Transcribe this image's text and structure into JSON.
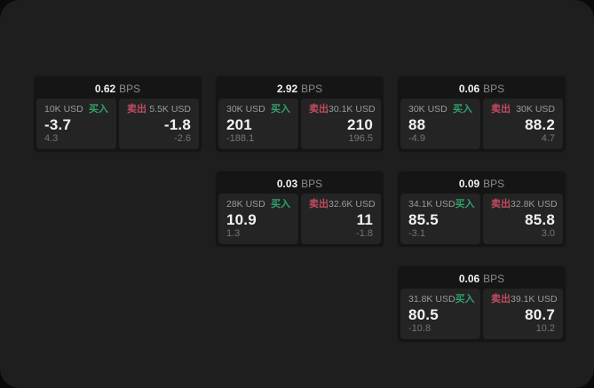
{
  "labels": {
    "bps_unit": "BPS",
    "buy": "买入",
    "sell": "卖出"
  },
  "colors": {
    "screen_bg": "#1e1e1e",
    "outer_bg": "#0a0a0a",
    "card_bg": "#151515",
    "panel_bg": "#242424",
    "buy_green": "#2fa06c",
    "sell_red": "#c14b61"
  },
  "cards": [
    {
      "row": 1,
      "col": 1,
      "bps": "0.62",
      "buy": {
        "amount": "10K USD",
        "price": "-3.7",
        "delta": "4.3"
      },
      "sell": {
        "amount": "5.5K USD",
        "price": "-1.8",
        "delta": "-2.6"
      }
    },
    {
      "row": 1,
      "col": 2,
      "bps": "2.92",
      "buy": {
        "amount": "30K USD",
        "price": "201",
        "delta": "-188.1"
      },
      "sell": {
        "amount": "30.1K USD",
        "price": "210",
        "delta": "196.5"
      }
    },
    {
      "row": 1,
      "col": 3,
      "bps": "0.06",
      "buy": {
        "amount": "30K USD",
        "price": "88",
        "delta": "-4.9"
      },
      "sell": {
        "amount": "30K USD",
        "price": "88.2",
        "delta": "4.7"
      }
    },
    {
      "row": 2,
      "col": 2,
      "bps": "0.03",
      "buy": {
        "amount": "28K USD",
        "price": "10.9",
        "delta": "1.3"
      },
      "sell": {
        "amount": "32.6K USD",
        "price": "11",
        "delta": "-1.8"
      }
    },
    {
      "row": 2,
      "col": 3,
      "bps": "0.09",
      "buy": {
        "amount": "34.1K USD",
        "price": "85.5",
        "delta": "-3.1"
      },
      "sell": {
        "amount": "32.8K USD",
        "price": "85.8",
        "delta": "3.0"
      }
    },
    {
      "row": 3,
      "col": 3,
      "bps": "0.06",
      "buy": {
        "amount": "31.8K USD",
        "price": "80.5",
        "delta": "-10.8"
      },
      "sell": {
        "amount": "39.1K USD",
        "price": "80.7",
        "delta": "10.2"
      }
    }
  ]
}
